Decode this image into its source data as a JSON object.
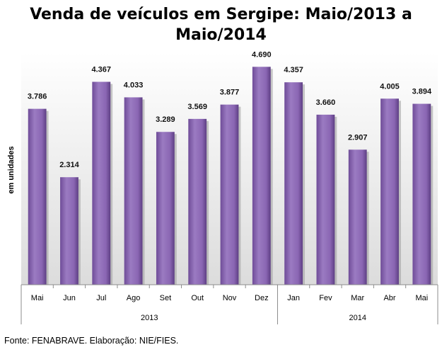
{
  "chart_data": {
    "type": "bar",
    "title_lines": [
      "Venda de veículos em Sergipe: Maio/2013 a",
      "Maio/2014"
    ],
    "xlabel": "",
    "ylabel": "em unidades",
    "categories": [
      "Mai",
      "Jun",
      "Jul",
      "Ago",
      "Set",
      "Out",
      "Nov",
      "Dez",
      "Jan",
      "Fev",
      "Mar",
      "Abr",
      "Mai"
    ],
    "values": [
      3786,
      2314,
      4367,
      4033,
      3289,
      3569,
      3877,
      4690,
      4357,
      3660,
      2907,
      4005,
      3894
    ],
    "value_labels": [
      "3.786",
      "2.314",
      "4.367",
      "4.033",
      "3.289",
      "3.569",
      "3.877",
      "4.690",
      "4.357",
      "3.660",
      "2.907",
      "4.005",
      "3.894"
    ],
    "groups": [
      {
        "label": "2013",
        "start": 0,
        "end": 7
      },
      {
        "label": "2014",
        "start": 8,
        "end": 12
      }
    ],
    "ylim": [
      0,
      5000
    ],
    "grid": false,
    "bar_color": "#8e6bb5"
  },
  "footer": {
    "source": "Fonte: FENABRAVE. Elaboração: NIE/FIES."
  }
}
